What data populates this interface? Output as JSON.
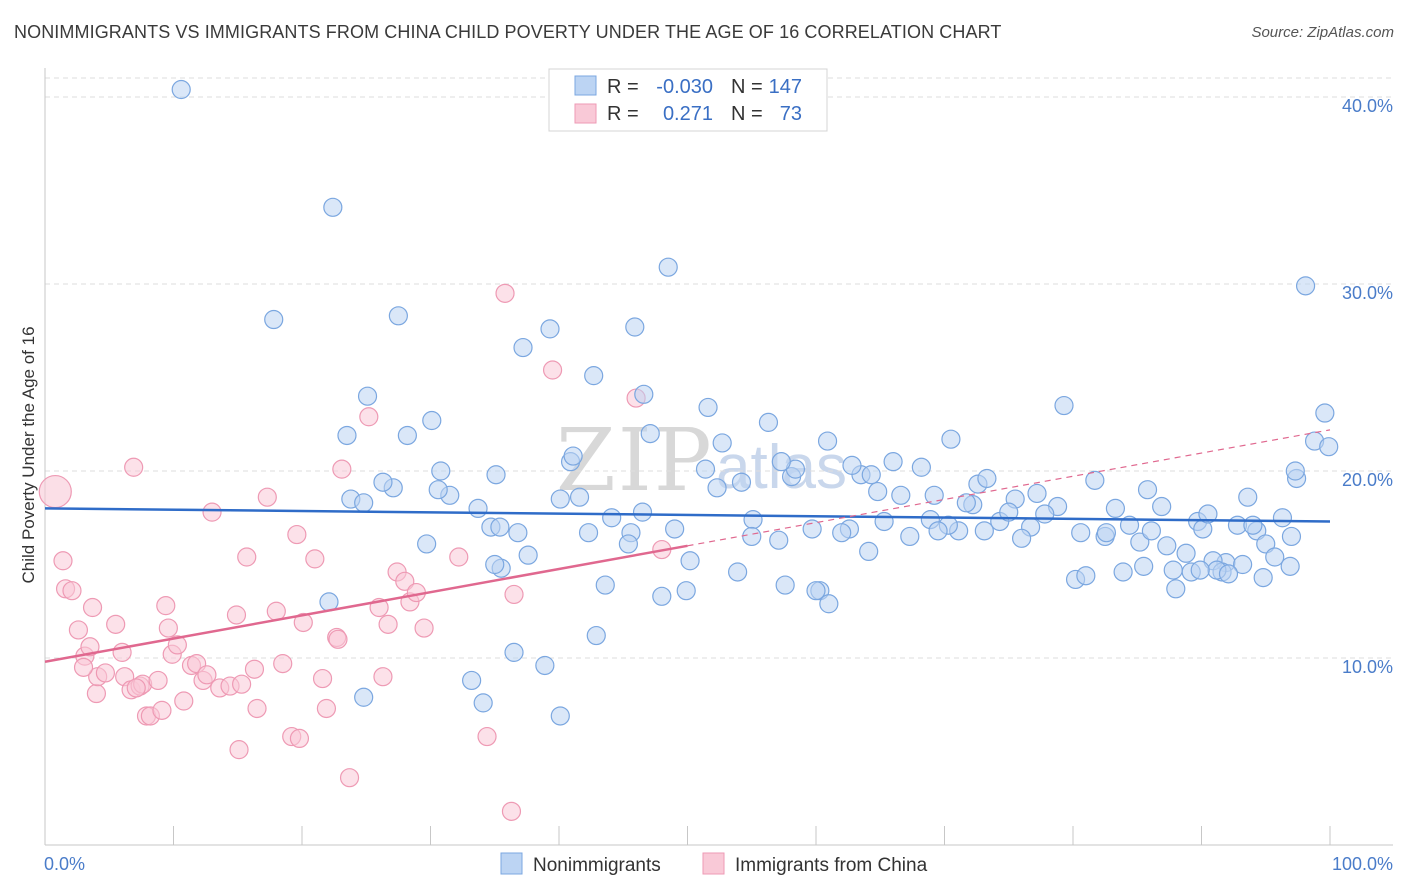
{
  "header": {
    "title": "NONIMMIGRANTS VS IMMIGRANTS FROM CHINA CHILD POVERTY UNDER THE AGE OF 16 CORRELATION CHART",
    "source": "Source: ZipAtlas.com"
  },
  "watermark": {
    "zip": "ZIP",
    "atlas": "atlas"
  },
  "legend": {
    "rows": [
      {
        "r_label": "R =",
        "r_value": "-0.030",
        "n_label": "N =",
        "n_value": "147",
        "color": "#a9c8f0"
      },
      {
        "r_label": "R =",
        "r_value": "0.271",
        "n_label": "N =",
        "n_value": "73",
        "color": "#f7b8cb"
      }
    ]
  },
  "bottom_legend": [
    "Nonimmigrants",
    "Immigrants from China"
  ],
  "chart_data": {
    "type": "scatter",
    "ylabel": "Child Poverty Under the Age of 16",
    "xlabel": "",
    "xlim": [
      0,
      100
    ],
    "ylim": [
      0,
      40
    ],
    "x_tick_labels": [
      "0.0%",
      "100.0%"
    ],
    "y_ticks": [
      10,
      20,
      30,
      40
    ],
    "y_tick_labels": [
      "10.0%",
      "20.0%",
      "30.0%",
      "40.0%"
    ],
    "grid": "horizontal dashed",
    "colors": {
      "blue_fill": "#bcd4f3",
      "blue_stroke": "#7ba7e0",
      "blue_line": "#2f6cc8",
      "pink_fill": "#f9c9d7",
      "pink_stroke": "#ee9ab4",
      "pink_line": "#e0688f"
    },
    "series": [
      {
        "name": "Nonimmigrants",
        "trend": {
          "x": [
            0,
            100
          ],
          "y": [
            18.0,
            17.3
          ]
        },
        "points": [
          [
            10.6,
            40.4
          ],
          [
            23.8,
            18.5
          ],
          [
            27.1,
            19.1
          ],
          [
            22.1,
            13.0
          ],
          [
            34.7,
            17.0
          ],
          [
            35.5,
            14.8
          ],
          [
            29.7,
            16.1
          ],
          [
            40.1,
            18.5
          ],
          [
            42.9,
            11.2
          ],
          [
            55.1,
            17.4
          ],
          [
            57.6,
            13.9
          ],
          [
            60.3,
            13.6
          ],
          [
            73.1,
            16.8
          ],
          [
            80.2,
            14.2
          ],
          [
            72.6,
            19.3
          ],
          [
            83.3,
            18.0
          ],
          [
            81.0,
            14.4
          ],
          [
            85.2,
            16.2
          ],
          [
            91.9,
            15.1
          ],
          [
            93.6,
            18.6
          ],
          [
            96.3,
            17.5
          ],
          [
            97.4,
            19.6
          ],
          [
            99.6,
            23.1
          ],
          [
            98.8,
            21.6
          ],
          [
            98.1,
            29.9
          ],
          [
            36.8,
            16.7
          ],
          [
            40.9,
            20.5
          ],
          [
            45.6,
            16.7
          ],
          [
            49.0,
            16.9
          ],
          [
            58.1,
            19.7
          ],
          [
            64.1,
            15.7
          ],
          [
            75.5,
            18.5
          ],
          [
            71.1,
            16.8
          ],
          [
            79.3,
            23.5
          ],
          [
            88.0,
            13.7
          ],
          [
            89.7,
            17.3
          ],
          [
            92.8,
            17.1
          ],
          [
            94.3,
            16.8
          ],
          [
            97.0,
            16.5
          ],
          [
            95.0,
            16.1
          ],
          [
            30.8,
            20.0
          ],
          [
            31.5,
            18.7
          ],
          [
            35.4,
            17.0
          ],
          [
            42.3,
            16.7
          ],
          [
            51.4,
            20.1
          ],
          [
            60.9,
            21.6
          ],
          [
            64.8,
            18.9
          ],
          [
            69.2,
            18.7
          ],
          [
            74.3,
            17.3
          ],
          [
            78.8,
            18.1
          ],
          [
            84.4,
            17.1
          ],
          [
            87.8,
            14.7
          ],
          [
            90.1,
            16.9
          ],
          [
            48.5,
            30.9
          ],
          [
            56.3,
            22.6
          ],
          [
            52.3,
            19.1
          ],
          [
            44.1,
            17.5
          ],
          [
            38.9,
            9.6
          ],
          [
            40.1,
            6.9
          ],
          [
            46.6,
            24.1
          ],
          [
            55.0,
            16.5
          ],
          [
            61.0,
            12.9
          ],
          [
            62.6,
            16.9
          ],
          [
            63.5,
            19.8
          ],
          [
            67.3,
            16.5
          ],
          [
            70.3,
            17.1
          ],
          [
            76.7,
            17.0
          ],
          [
            82.5,
            16.5
          ],
          [
            83.9,
            14.6
          ],
          [
            86.9,
            18.1
          ],
          [
            89.2,
            14.6
          ],
          [
            90.9,
            15.2
          ],
          [
            91.6,
            14.6
          ],
          [
            93.2,
            15.0
          ],
          [
            95.7,
            15.4
          ],
          [
            24.8,
            18.3
          ],
          [
            30.6,
            19.0
          ],
          [
            35.0,
            15.0
          ],
          [
            37.6,
            15.5
          ],
          [
            45.4,
            16.1
          ],
          [
            49.9,
            13.6
          ],
          [
            57.1,
            16.3
          ],
          [
            59.7,
            16.9
          ],
          [
            62.0,
            16.7
          ],
          [
            66.6,
            18.7
          ],
          [
            68.9,
            17.4
          ],
          [
            72.2,
            18.2
          ],
          [
            76.0,
            16.4
          ],
          [
            77.8,
            17.7
          ],
          [
            81.7,
            19.5
          ],
          [
            86.1,
            16.8
          ],
          [
            88.8,
            15.6
          ],
          [
            91.2,
            14.7
          ],
          [
            94.8,
            14.3
          ],
          [
            96.9,
            14.9
          ],
          [
            17.8,
            28.1
          ],
          [
            22.4,
            34.1
          ],
          [
            26.3,
            19.4
          ],
          [
            28.2,
            21.9
          ],
          [
            33.7,
            18.0
          ],
          [
            41.6,
            18.6
          ],
          [
            43.6,
            13.9
          ],
          [
            47.1,
            22.0
          ],
          [
            50.2,
            15.2
          ],
          [
            52.7,
            21.5
          ],
          [
            54.2,
            19.4
          ],
          [
            58.4,
            20.1
          ],
          [
            60.0,
            13.6
          ],
          [
            64.3,
            19.8
          ],
          [
            66.0,
            20.5
          ],
          [
            68.2,
            20.2
          ],
          [
            70.5,
            21.7
          ],
          [
            73.3,
            19.6
          ],
          [
            77.2,
            18.8
          ],
          [
            80.6,
            16.7
          ],
          [
            85.5,
            14.9
          ],
          [
            87.3,
            16.0
          ],
          [
            89.9,
            14.7
          ],
          [
            92.1,
            14.5
          ],
          [
            94.0,
            17.1
          ],
          [
            97.3,
            20.0
          ],
          [
            99.9,
            21.3
          ],
          [
            27.5,
            28.3
          ],
          [
            33.2,
            8.8
          ],
          [
            25.1,
            24.0
          ],
          [
            37.2,
            26.6
          ],
          [
            39.3,
            27.6
          ],
          [
            42.7,
            25.1
          ],
          [
            45.9,
            27.7
          ],
          [
            51.6,
            23.4
          ],
          [
            36.5,
            10.3
          ],
          [
            23.5,
            21.9
          ],
          [
            30.1,
            22.7
          ],
          [
            48.0,
            13.3
          ],
          [
            57.3,
            20.5
          ],
          [
            65.3,
            17.3
          ],
          [
            71.7,
            18.3
          ],
          [
            75.0,
            17.8
          ],
          [
            82.6,
            16.7
          ],
          [
            85.8,
            19.0
          ],
          [
            90.5,
            17.7
          ],
          [
            24.8,
            7.9
          ],
          [
            34.1,
            7.6
          ],
          [
            35.1,
            19.8
          ],
          [
            41.1,
            20.8
          ],
          [
            46.5,
            17.8
          ],
          [
            53.9,
            14.6
          ],
          [
            62.8,
            20.3
          ],
          [
            69.5,
            16.8
          ]
        ]
      },
      {
        "name": "Immigrants from China",
        "trend": {
          "x": [
            0,
            50
          ],
          "y": [
            9.8,
            16.0
          ]
        },
        "trend_extension": {
          "x": [
            50,
            100
          ],
          "y": [
            16.0,
            22.2
          ]
        },
        "points": [
          [
            0.8,
            18.9
          ],
          [
            1.4,
            15.2
          ],
          [
            1.6,
            13.7
          ],
          [
            2.1,
            13.6
          ],
          [
            2.6,
            11.5
          ],
          [
            3.1,
            10.1
          ],
          [
            3.5,
            10.6
          ],
          [
            3.7,
            12.7
          ],
          [
            4.0,
            8.1
          ],
          [
            4.1,
            9.0
          ],
          [
            4.7,
            9.2
          ],
          [
            5.5,
            11.8
          ],
          [
            6.0,
            10.3
          ],
          [
            6.2,
            9.0
          ],
          [
            6.7,
            8.3
          ],
          [
            6.9,
            20.2
          ],
          [
            7.4,
            8.5
          ],
          [
            7.6,
            8.6
          ],
          [
            7.9,
            6.9
          ],
          [
            8.2,
            6.9
          ],
          [
            8.8,
            8.8
          ],
          [
            9.1,
            7.2
          ],
          [
            9.4,
            12.8
          ],
          [
            9.6,
            11.6
          ],
          [
            9.9,
            10.2
          ],
          [
            10.3,
            10.7
          ],
          [
            10.8,
            7.7
          ],
          [
            11.4,
            9.6
          ],
          [
            11.8,
            9.7
          ],
          [
            12.3,
            8.8
          ],
          [
            12.6,
            9.1
          ],
          [
            13.0,
            17.8
          ],
          [
            13.6,
            8.4
          ],
          [
            14.4,
            8.5
          ],
          [
            14.9,
            12.3
          ],
          [
            15.1,
            5.1
          ],
          [
            15.3,
            8.6
          ],
          [
            15.7,
            15.4
          ],
          [
            16.3,
            9.4
          ],
          [
            16.5,
            7.3
          ],
          [
            17.3,
            18.6
          ],
          [
            18.0,
            12.5
          ],
          [
            18.5,
            9.7
          ],
          [
            19.2,
            5.8
          ],
          [
            19.6,
            16.6
          ],
          [
            19.8,
            5.7
          ],
          [
            20.1,
            11.9
          ],
          [
            21.0,
            15.3
          ],
          [
            21.6,
            8.9
          ],
          [
            21.9,
            7.3
          ],
          [
            22.7,
            11.1
          ],
          [
            22.8,
            11.0
          ],
          [
            23.1,
            20.1
          ],
          [
            23.7,
            3.6
          ],
          [
            25.2,
            22.9
          ],
          [
            26.0,
            12.7
          ],
          [
            26.3,
            9.0
          ],
          [
            26.7,
            11.8
          ],
          [
            27.4,
            14.6
          ],
          [
            28.0,
            14.1
          ],
          [
            28.4,
            13.0
          ],
          [
            28.9,
            13.5
          ],
          [
            29.5,
            11.6
          ],
          [
            32.2,
            15.4
          ],
          [
            34.4,
            5.8
          ],
          [
            35.8,
            29.5
          ],
          [
            36.3,
            1.8
          ],
          [
            36.5,
            13.4
          ],
          [
            39.5,
            25.4
          ],
          [
            46.0,
            23.9
          ],
          [
            48.0,
            15.8
          ],
          [
            3.0,
            9.5
          ],
          [
            7.1,
            8.4
          ]
        ]
      }
    ]
  }
}
